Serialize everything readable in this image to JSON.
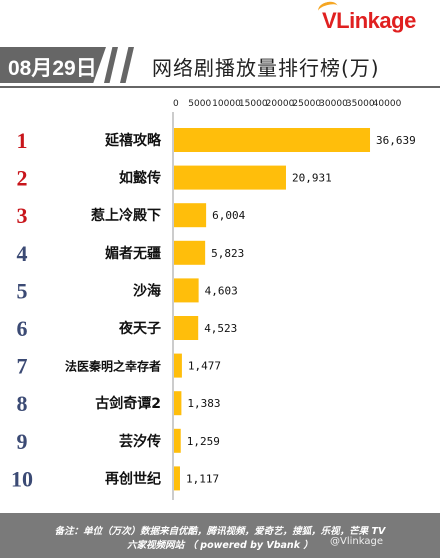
{
  "brand": {
    "logo_text": "VLinkage"
  },
  "header": {
    "date": "08月29日",
    "title": "网络剧播放量排行榜(万)"
  },
  "footer": {
    "line1": "备注：单位（万次）数据来自优酷，腾讯视频，爱奇艺，搜狐，乐视，芒果 TV",
    "line2": "六家视频网站 （ powered by Vbank ）",
    "watermark": "@Vlinkage"
  },
  "colors": {
    "bar": "#ffbe0b",
    "rank_top": "#c8151b",
    "rank_other": "#3b4a74",
    "header_gray": "#666666"
  },
  "chart_data": {
    "type": "bar",
    "orientation": "horizontal",
    "title": "网络剧播放量排行榜(万)",
    "xlim": [
      0,
      40000
    ],
    "xticks": [
      0,
      5000,
      10000,
      15000,
      20000,
      25000,
      30000,
      35000,
      40000
    ],
    "xtick_labels": [
      "0",
      "5000",
      "10000",
      "15000",
      "20000",
      "25000",
      "30000",
      "35000",
      "40000"
    ],
    "grid": false,
    "ranks": [
      "1",
      "2",
      "3",
      "4",
      "5",
      "6",
      "7",
      "8",
      "9",
      "10"
    ],
    "categories": [
      "延禧攻略",
      "如懿传",
      "惹上冷殿下",
      "媚者无疆",
      "沙海",
      "夜天子",
      "法医秦明之幸存者",
      "古剑奇谭2",
      "芸汐传",
      "再创世纪"
    ],
    "values": [
      36639,
      20931,
      6004,
      5823,
      4603,
      4523,
      1477,
      1383,
      1259,
      1117
    ],
    "value_labels": [
      "36,639",
      "20,931",
      "6,004",
      "5,823",
      "4,603",
      "4,523",
      "1,477",
      "1,383",
      "1,259",
      "1,117"
    ]
  }
}
